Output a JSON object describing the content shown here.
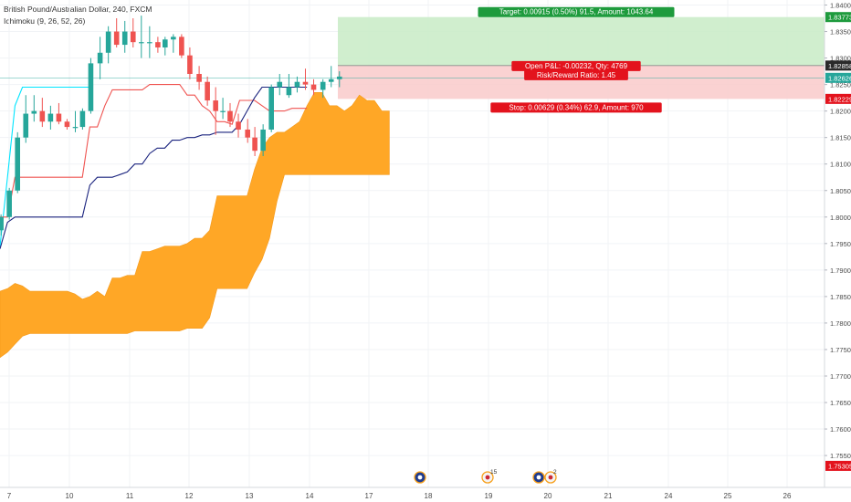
{
  "header": {
    "title": "British Pound/Australian Dollar, 240, FXCM",
    "indicator": "Ichimoku (9, 26, 52, 26)"
  },
  "chart_data": {
    "type": "candlestick",
    "symbol": "British Pound/Australian Dollar",
    "timeframe": "240",
    "source": "FXCM",
    "y_ticks": [
      "1.84000",
      "1.83500",
      "1.83000",
      "1.82500",
      "1.82000",
      "1.81500",
      "1.81000",
      "1.80500",
      "1.80000",
      "1.79500",
      "1.79000",
      "1.78500",
      "1.78000",
      "1.77500",
      "1.77000",
      "1.76500",
      "1.76000",
      "1.75500"
    ],
    "x_ticks": [
      "7",
      "10",
      "11",
      "12",
      "13",
      "14",
      "17",
      "18",
      "19",
      "20",
      "21",
      "24",
      "25",
      "26"
    ],
    "ylim": [
      1.7525,
      1.8425
    ],
    "price_labels": [
      {
        "value": 1.83773,
        "text": "1.83773",
        "color": "#1e9b3d"
      },
      {
        "value": 1.82858,
        "text": "1.82858",
        "color": "#2a2a2a"
      },
      {
        "value": 1.82626,
        "text": "1.82626",
        "color": "#26a69a"
      },
      {
        "value": 1.82229,
        "text": "1.82229",
        "color": "#e3131d"
      },
      {
        "value": 1.75305,
        "text": "1.75305",
        "color": "#e3131d"
      }
    ],
    "position": {
      "entry": 1.82858,
      "target": 1.83773,
      "stop": 1.82229,
      "target_label": "Target: 0.00915 (0.50%) 91.5, Amount: 1043.64",
      "pnl_label": "Open P&L: -0.00232, Qty: 4769",
      "rr_label": "Risk/Reward Ratio: 1.45",
      "stop_label": "Stop: 0.00629 (0.34%) 62.9, Amount: 970"
    },
    "current_price": 1.82626,
    "candles": [
      [
        1.7975,
        1.8005,
        1.7965,
        1.8
      ],
      [
        1.8,
        1.8055,
        1.7995,
        1.805
      ],
      [
        1.805,
        1.816,
        1.8045,
        1.815
      ],
      [
        1.815,
        1.823,
        1.814,
        1.8195
      ],
      [
        1.8195,
        1.823,
        1.818,
        1.82
      ],
      [
        1.82,
        1.8225,
        1.817,
        1.818
      ],
      [
        1.818,
        1.821,
        1.8165,
        1.8195
      ],
      [
        1.8195,
        1.8215,
        1.8175,
        1.818
      ],
      [
        1.818,
        1.8185,
        1.8165,
        1.817
      ],
      [
        1.817,
        1.82,
        1.816,
        1.817
      ],
      [
        1.817,
        1.8205,
        1.8165,
        1.82
      ],
      [
        1.82,
        1.83,
        1.8195,
        1.829
      ],
      [
        1.829,
        1.834,
        1.826,
        1.831
      ],
      [
        1.831,
        1.836,
        1.829,
        1.835
      ],
      [
        1.835,
        1.8375,
        1.832,
        1.8325
      ],
      [
        1.8325,
        1.837,
        1.831,
        1.835
      ],
      [
        1.835,
        1.8375,
        1.832,
        1.833
      ],
      [
        1.833,
        1.838,
        1.83,
        1.833
      ],
      [
        1.833,
        1.836,
        1.83,
        1.833
      ],
      [
        1.833,
        1.834,
        1.831,
        1.832
      ],
      [
        1.832,
        1.834,
        1.8305,
        1.8335
      ],
      [
        1.8335,
        1.8345,
        1.831,
        1.834
      ],
      [
        1.834,
        1.8345,
        1.83,
        1.8305
      ],
      [
        1.8305,
        1.832,
        1.826,
        1.827
      ],
      [
        1.827,
        1.8285,
        1.824,
        1.8255
      ],
      [
        1.8255,
        1.8265,
        1.821,
        1.822
      ],
      [
        1.822,
        1.8245,
        1.8155,
        1.82
      ],
      [
        1.82,
        1.8225,
        1.8185,
        1.82
      ],
      [
        1.82,
        1.8215,
        1.817,
        1.818
      ],
      [
        1.818,
        1.8195,
        1.815,
        1.8165
      ],
      [
        1.8165,
        1.8185,
        1.814,
        1.815
      ],
      [
        1.815,
        1.817,
        1.8115,
        1.8125
      ],
      [
        1.8125,
        1.8175,
        1.8115,
        1.8165
      ],
      [
        1.8165,
        1.825,
        1.816,
        1.8245
      ],
      [
        1.8245,
        1.827,
        1.823,
        1.8255
      ],
      [
        1.823,
        1.827,
        1.8225,
        1.8245
      ],
      [
        1.8245,
        1.8265,
        1.8235,
        1.8255
      ],
      [
        1.8255,
        1.828,
        1.824,
        1.825
      ],
      [
        1.825,
        1.826,
        1.823,
        1.824
      ],
      [
        1.824,
        1.826,
        1.8225,
        1.8255
      ],
      [
        1.8255,
        1.8285,
        1.8245,
        1.826
      ],
      [
        1.826,
        1.8275,
        1.8245,
        1.8265
      ]
    ],
    "tenkan": [
      1.7945,
      1.8075,
      1.821,
      1.8245,
      1.8245,
      1.8245,
      1.8245,
      1.8245,
      1.8245,
      1.8245,
      1.8245,
      1.8245,
      1.8245,
      1.8245,
      1.8245,
      1.8245,
      1.8245,
      1.8245,
      1.8245,
      1.8245,
      1.8245,
      1.8245,
      1.8245,
      1.8245,
      1.8245,
      1.8245,
      1.8245,
      1.8245,
      1.8245,
      1.8245,
      1.8245,
      1.8245,
      1.8245,
      1.8245,
      1.8245,
      1.8245,
      1.8245,
      1.8245,
      1.8245,
      1.8245,
      1.8245,
      1.8245
    ],
    "kijun": [
      1.8,
      1.8,
      1.8075,
      1.8075,
      1.8075,
      1.8075,
      1.8075,
      1.8075,
      1.8075,
      1.8075,
      1.8075,
      1.8075,
      1.817,
      1.817,
      1.821,
      1.824,
      1.824,
      1.824,
      1.824,
      1.824,
      1.825,
      1.825,
      1.825,
      1.825,
      1.825,
      1.823,
      1.823,
      1.821,
      1.82,
      1.818,
      1.818,
      1.8175,
      1.822,
      1.822,
      1.822,
      1.821,
      1.82,
      1.82,
      1.82,
      1.8205,
      1.8205,
      1.8205
    ],
    "kijun_blue": [
      1.794,
      1.799,
      1.8,
      1.8,
      1.8,
      1.8,
      1.8,
      1.8,
      1.8,
      1.8,
      1.8,
      1.8,
      1.806,
      1.8075,
      1.8075,
      1.8075,
      1.808,
      1.8085,
      1.81,
      1.81,
      1.812,
      1.813,
      1.813,
      1.8145,
      1.8145,
      1.815,
      1.815,
      1.8155,
      1.8155,
      1.816,
      1.816,
      1.816,
      1.8175,
      1.82,
      1.8225,
      1.8245,
      1.8245,
      1.8245,
      1.8245,
      1.8245,
      1.8245,
      1.8245
    ],
    "cloud_upper": [
      1.786,
      1.7865,
      1.7875,
      1.787,
      1.786,
      1.786,
      1.786,
      1.786,
      1.786,
      1.786,
      1.7855,
      1.7845,
      1.785,
      1.786,
      1.785,
      1.7885,
      1.7885,
      1.789,
      1.789,
      1.7935,
      1.7935,
      1.794,
      1.7945,
      1.7945,
      1.7945,
      1.795,
      1.796,
      1.796,
      1.7975,
      1.804,
      1.804,
      1.804,
      1.804,
      1.804,
      1.809,
      1.813,
      1.815,
      1.816,
      1.816,
      1.817,
      1.818,
      1.821,
      1.8235,
      1.8235,
      1.821,
      1.821,
      1.82,
      1.821,
      1.823,
      1.822,
      1.822,
      1.82,
      1.82
    ],
    "cloud_lower": [
      1.7735,
      1.7745,
      1.776,
      1.7775,
      1.778,
      1.778,
      1.778,
      1.778,
      1.778,
      1.778,
      1.778,
      1.778,
      1.778,
      1.778,
      1.778,
      1.778,
      1.778,
      1.778,
      1.7785,
      1.7785,
      1.7785,
      1.7785,
      1.7785,
      1.7785,
      1.7785,
      1.779,
      1.779,
      1.779,
      1.781,
      1.7865,
      1.7865,
      1.7865,
      1.7865,
      1.7865,
      1.7895,
      1.792,
      1.796,
      1.803,
      1.808,
      1.808,
      1.808,
      1.808,
      1.808,
      1.808,
      1.808,
      1.808,
      1.808,
      1.808,
      1.808,
      1.808,
      1.808,
      1.808,
      1.808
    ],
    "events": [
      {
        "x_label": "18",
        "icon": "australia-flag-icon"
      },
      {
        "x_label": "19",
        "icon": "uk-flag-icon",
        "badge": "15"
      },
      {
        "x_label": "20",
        "icon": "australia-flag-icon",
        "badge": ""
      },
      {
        "x_label": "20",
        "icon": "uk-flag-icon",
        "badge": "2"
      }
    ],
    "colors": {
      "up": "#26a69a",
      "down": "#ef5350",
      "cloud": "#ffa726",
      "tenkan": "#00e5ff",
      "kijun": "#ef5350",
      "chikou": "#1a237e",
      "target_zone": "#c8ebc6",
      "stop_zone": "#f9caca",
      "grid": "#f1f3f6"
    }
  }
}
